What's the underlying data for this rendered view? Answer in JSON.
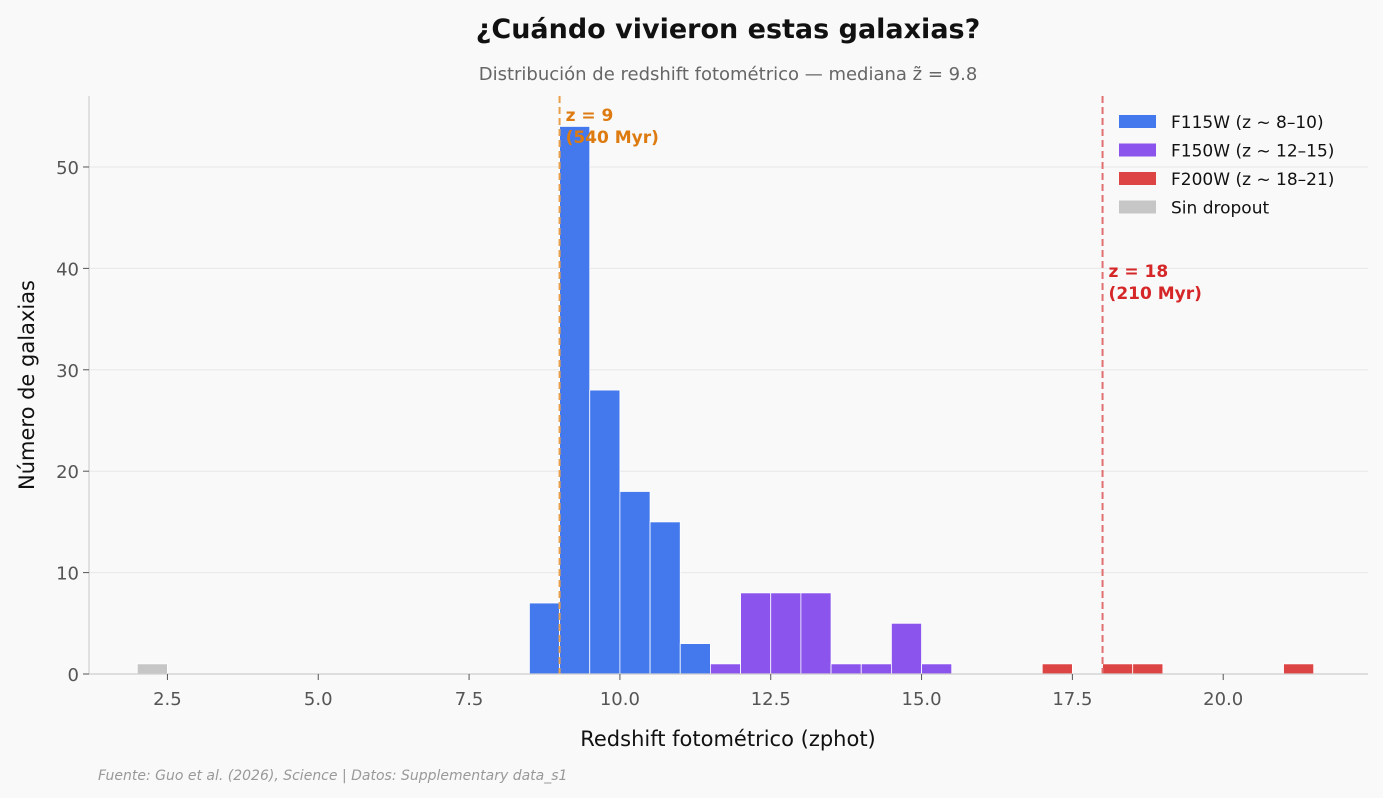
{
  "chart_data": {
    "type": "bar",
    "title": "¿Cuándo vivieron estas galaxias?",
    "subtitle": "Distribución de redshift fotométrico — mediana z̃ = 9.8",
    "xlabel": "Redshift fotométrico (zphot)",
    "ylabel": "Número de galaxias",
    "xlim": [
      1.2,
      22.4
    ],
    "ylim": [
      0,
      57
    ],
    "xticks": [
      2.5,
      5.0,
      7.5,
      10.0,
      12.5,
      15.0,
      17.5,
      20.0
    ],
    "xtick_labels": [
      "2.5",
      "5.0",
      "7.5",
      "10.0",
      "12.5",
      "15.0",
      "17.5",
      "20.0"
    ],
    "yticks": [
      0,
      10,
      20,
      30,
      40,
      50
    ],
    "ytick_labels": [
      "0",
      "10",
      "20",
      "30",
      "40",
      "50"
    ],
    "grid": "horizontal",
    "legend_position": "top-right",
    "bin_width": 0.5,
    "series": [
      {
        "name": "F115W (z ~ 8–10)",
        "color": "#4479ee",
        "bins": [
          {
            "x0": 8.5,
            "count": 7
          },
          {
            "x0": 9.0,
            "count": 54
          },
          {
            "x0": 9.5,
            "count": 28
          },
          {
            "x0": 10.0,
            "count": 18
          },
          {
            "x0": 10.5,
            "count": 15
          },
          {
            "x0": 11.0,
            "count": 3
          }
        ]
      },
      {
        "name": "F150W (z ~ 12–15)",
        "color": "#8b54ec",
        "bins": [
          {
            "x0": 11.5,
            "count": 1
          },
          {
            "x0": 12.0,
            "count": 8
          },
          {
            "x0": 12.5,
            "count": 8
          },
          {
            "x0": 13.0,
            "count": 8
          },
          {
            "x0": 13.5,
            "count": 1
          },
          {
            "x0": 14.0,
            "count": 1
          },
          {
            "x0": 14.5,
            "count": 5
          },
          {
            "x0": 15.0,
            "count": 1
          }
        ]
      },
      {
        "name": "F200W (z ~ 18–21)",
        "color": "#dd4444",
        "bins": [
          {
            "x0": 17.0,
            "count": 1
          },
          {
            "x0": 18.0,
            "count": 1
          },
          {
            "x0": 18.5,
            "count": 1
          },
          {
            "x0": 21.0,
            "count": 1
          }
        ]
      },
      {
        "name": "Sin dropout",
        "color": "#c6c6c6",
        "bins": [
          {
            "x0": 2.0,
            "count": 1
          }
        ]
      }
    ],
    "reference_lines": [
      {
        "x": 9,
        "label_line1": "z = 9",
        "label_line2": "(540 Myr)",
        "color": "#e8a04a",
        "text_color": "#dd7a10"
      },
      {
        "x": 18,
        "label_line1": "z = 18",
        "label_line2": "(210 Myr)",
        "color": "#e07070",
        "text_color": "#d62728"
      }
    ]
  },
  "footer": {
    "source": "Fuente: Guo et al. (2026), Science | Datos: Supplementary data_s1"
  }
}
